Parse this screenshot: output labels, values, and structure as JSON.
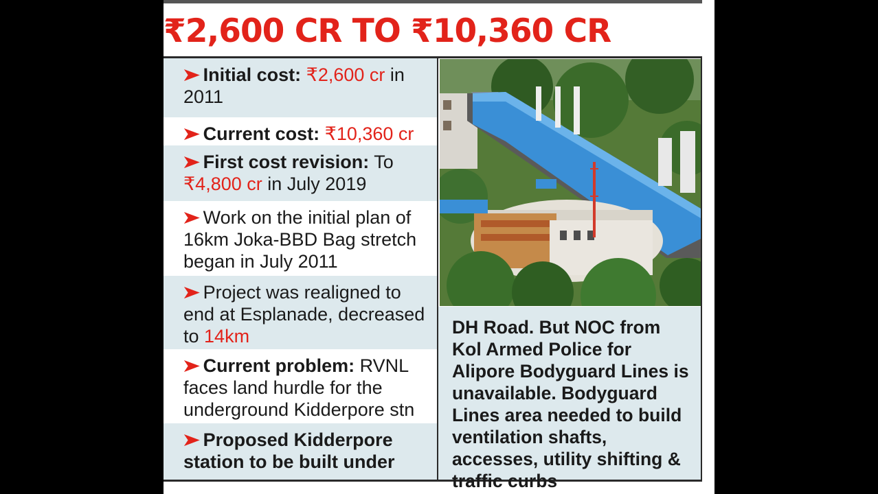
{
  "headline": "₹2,600 CR TO ₹10,360 CR",
  "bullets": {
    "initial_label": "Initial cost:",
    "initial_value": "₹2,600 cr",
    "initial_rest": " in 2011",
    "current_label": "Current cost:",
    "current_value": "₹10,360 cr",
    "revision_label": "First cost revision:",
    "revision_pre": " To ",
    "revision_value": "₹4,800 cr",
    "revision_rest": " in July 2019",
    "work_text": "Work on the initial plan of 16km Joka-BBD Bag stretch began in July 2011",
    "realign_text": "Project was realigned to end at Esplanade, decreased to ",
    "realign_value": "14km",
    "problem_label": "Current problem:",
    "problem_text": " RVNL faces land hurdle for the underground Kidderpore stn",
    "proposed_text": "Proposed Kidderpore station to be built under"
  },
  "continuation_text": "DH Road. But NOC from Kol Armed Police for Alipore Bodyguard Lines is unavailable. Bodyguard Lines area needed to build ventilation shafts, accesses, utility shifting & traffic curbs",
  "arrow_glyph": "➤",
  "colors": {
    "accent": "#e2231a",
    "panel": "#dde9ed",
    "roof": "#3a8fd6"
  }
}
